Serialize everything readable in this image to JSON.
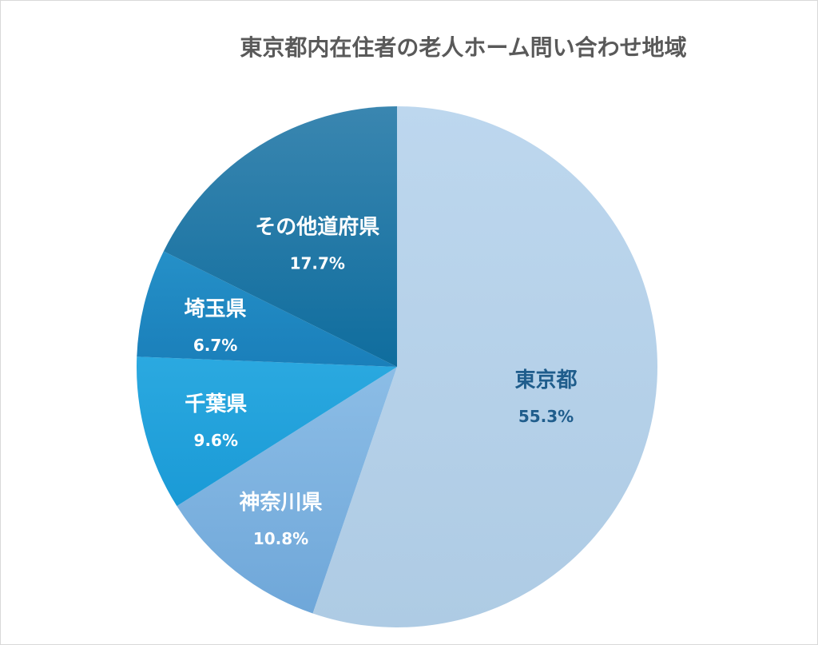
{
  "chart_data": {
    "type": "pie",
    "title": "東京都内在住者の老人ホーム問い合わせ地域",
    "slices": [
      {
        "label": "東京都",
        "value": 55.3,
        "value_label": "55.3%",
        "color": "#aecbe4",
        "color_light": "#bdd7ee",
        "text_color": "#1f5d8c"
      },
      {
        "label": "神奈川県",
        "value": 10.8,
        "value_label": "10.8%",
        "color": "#6fa7d9",
        "color_light": "#8cbde6",
        "text_color": "#ffffff"
      },
      {
        "label": "千葉県",
        "value": 9.6,
        "value_label": "9.6%",
        "color": "#1a9ad6",
        "color_light": "#2ba9e0",
        "text_color": "#ffffff"
      },
      {
        "label": "埼玉県",
        "value": 6.7,
        "value_label": "6.7%",
        "color": "#1a7fba",
        "color_light": "#2590c8",
        "text_color": "#ffffff"
      },
      {
        "label": "その他道府県",
        "value": 17.7,
        "value_label": "17.7%",
        "color": "#0f6d9e",
        "color_light": "#3a86b0",
        "text_color": "#ffffff"
      }
    ],
    "start": "top, clockwise",
    "legend": "none"
  }
}
